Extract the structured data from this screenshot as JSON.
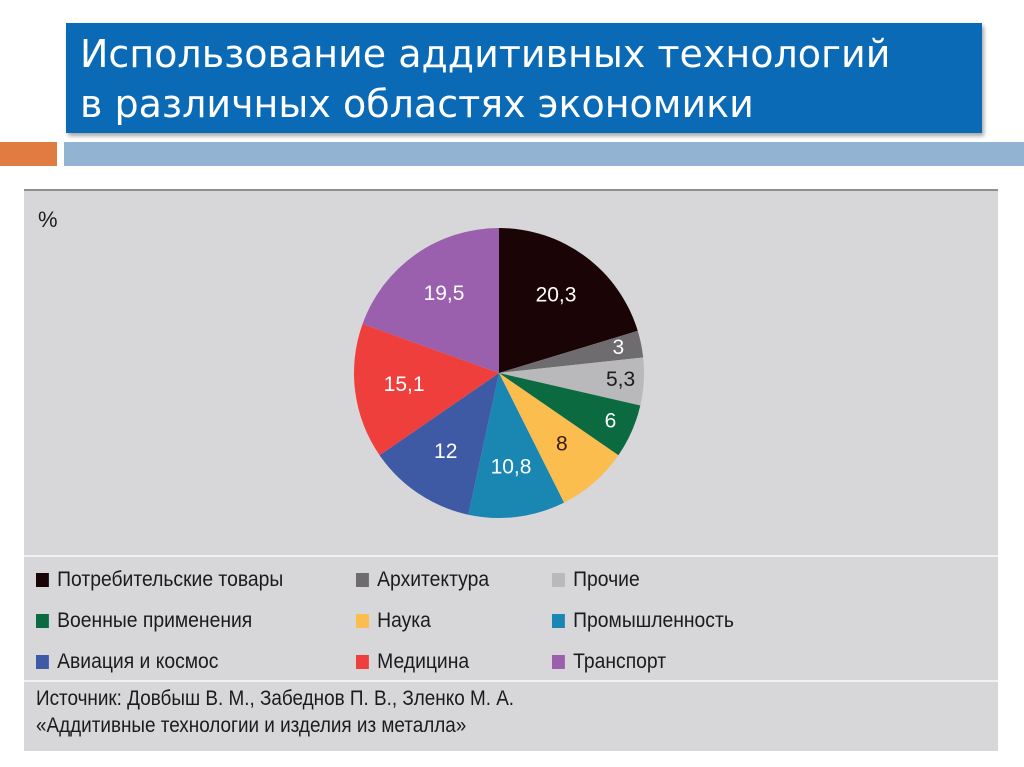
{
  "title": {
    "line1": "Использование аддитивных технологий",
    "line2": "в различных областях экономики"
  },
  "colors": {
    "title_bg": "#0a6ab6",
    "accent_orange": "#e07b42",
    "accent_blue": "#93b3d2",
    "panel_bg": "#d7d7da"
  },
  "chart": {
    "unit_label": "%"
  },
  "legend": {
    "items": [
      {
        "label": "Потребительские товары",
        "color": "#1a0406"
      },
      {
        "label": "Архитектура",
        "color": "#6e6c6f"
      },
      {
        "label": "Прочие",
        "color": "#b9b9bb"
      },
      {
        "label": "Военные применения",
        "color": "#0b6a40"
      },
      {
        "label": "Наука",
        "color": "#fbbd4e"
      },
      {
        "label": "Промышленность",
        "color": "#1a87b3"
      },
      {
        "label": "Авиация и космос",
        "color": "#3e5aa5"
      },
      {
        "label": "Медицина",
        "color": "#ef3f3d"
      },
      {
        "label": "Транспорт",
        "color": "#9a5fad"
      }
    ]
  },
  "source": {
    "line1": "Источник: Довбыш В. М., Забеднов П. В., Зленко М. А.",
    "line2": "«Аддитивные технологии и изделия из металла»"
  },
  "chart_data": {
    "type": "pie",
    "title": "Использование аддитивных технологий в различных областях экономики",
    "unit": "%",
    "start_angle": "12 o'clock, clockwise",
    "categories": [
      "Потребительские товары",
      "Архитектура",
      "Прочие",
      "Военные применения",
      "Наука",
      "Промышленность",
      "Авиация и космос",
      "Медицина",
      "Транспорт"
    ],
    "values": [
      20.3,
      3,
      5.3,
      6,
      8,
      10.8,
      12,
      15.1,
      19.5
    ],
    "labels": [
      "20,3",
      "3",
      "5,3",
      "6",
      "8",
      "10,8",
      "12",
      "15,1",
      "19,5"
    ],
    "colors": [
      "#1a0406",
      "#6e6c6f",
      "#b9b9bb",
      "#0b6a40",
      "#fbbd4e",
      "#1a87b3",
      "#3e5aa5",
      "#ef3f3d",
      "#9a5fad"
    ],
    "label_colors": [
      "#ffffff",
      "#ffffff",
      "#1b1b1b",
      "#ffffff",
      "#3a1a0a",
      "#ffffff",
      "#ffffff",
      "#ffffff",
      "#ffffff"
    ],
    "legend_position": "bottom, 3 columns",
    "source": "Источник: Довбыш В. М., Забеднов П. В., Зленко М. А. «Аддитивные технологии и изделия из металла»"
  }
}
